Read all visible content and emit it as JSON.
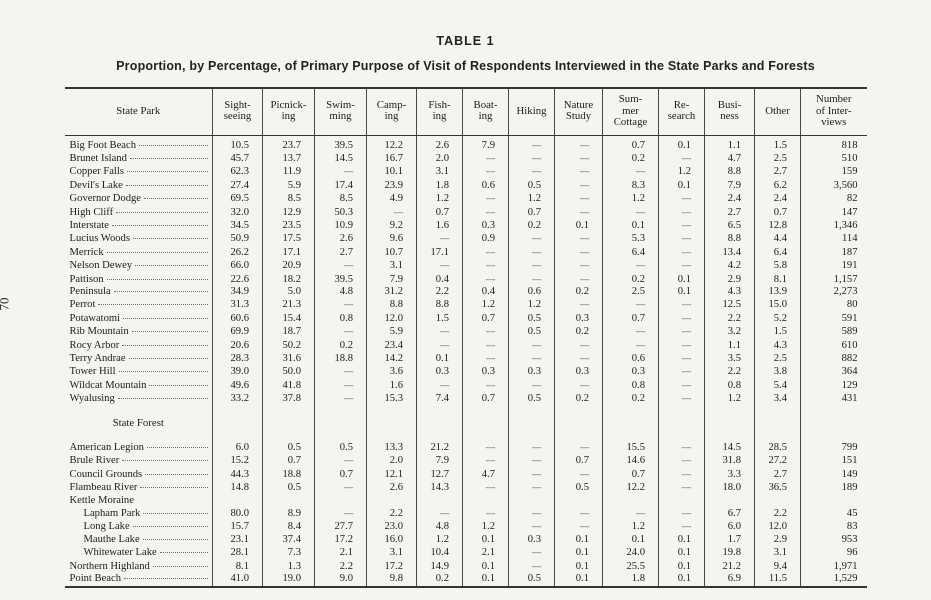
{
  "page": {
    "number": "70"
  },
  "title": "TABLE 1",
  "subtitle": "Proportion, by Percentage, of Primary Purpose of Visit of Respondents Interviewed in the State Parks and Forests",
  "table": {
    "empty_marker": "----",
    "columns": [
      {
        "id": "state-park",
        "label": "State Park"
      },
      {
        "id": "sightseeing",
        "label": "Sight-\nseeing"
      },
      {
        "id": "picnicking",
        "label": "Picnick-\ning"
      },
      {
        "id": "swimming",
        "label": "Swim-\nming"
      },
      {
        "id": "camping",
        "label": "Camp-\ning"
      },
      {
        "id": "fishing",
        "label": "Fish-\ning"
      },
      {
        "id": "boating",
        "label": "Boat-\ning"
      },
      {
        "id": "hiking",
        "label": "Hiking"
      },
      {
        "id": "nature-study",
        "label": "Nature\nStudy"
      },
      {
        "id": "summer-cottage",
        "label": "Sum-\nmer\nCottage"
      },
      {
        "id": "research",
        "label": "Re-\nsearch"
      },
      {
        "id": "business",
        "label": "Busi-\nness"
      },
      {
        "id": "other",
        "label": "Other"
      },
      {
        "id": "interviews",
        "label": "Number\nof Inter-\nviews"
      }
    ],
    "sections": [
      {
        "heading": "",
        "rows": [
          {
            "name": "Big Foot Beach",
            "values": [
              "10.5",
              "23.7",
              "39.5",
              "12.2",
              "2.6",
              "7.9",
              "",
              "",
              "0.7",
              "0.1",
              "1.1",
              "1.5",
              "818"
            ]
          },
          {
            "name": "Brunet Island",
            "values": [
              "45.7",
              "13.7",
              "14.5",
              "16.7",
              "2.0",
              "",
              "",
              "",
              "0.2",
              "",
              "4.7",
              "2.5",
              "510"
            ]
          },
          {
            "name": "Copper Falls",
            "values": [
              "62.3",
              "11.9",
              "",
              "10.1",
              "3.1",
              "",
              "",
              "",
              "",
              "1.2",
              "8.8",
              "2.7",
              "159"
            ]
          },
          {
            "name": "Devil's Lake",
            "values": [
              "27.4",
              "5.9",
              "17.4",
              "23.9",
              "1.8",
              "0.6",
              "0.5",
              "",
              "8.3",
              "0.1",
              "7.9",
              "6.2",
              "3,560"
            ]
          },
          {
            "name": "Governor Dodge",
            "values": [
              "69.5",
              "8.5",
              "8.5",
              "4.9",
              "1.2",
              "",
              "1.2",
              "",
              "1.2",
              "",
              "2.4",
              "2.4",
              "82"
            ]
          },
          {
            "name": "High Cliff",
            "values": [
              "32.0",
              "12.9",
              "50.3",
              "",
              "0.7",
              "",
              "0.7",
              "",
              "",
              "",
              "2.7",
              "0.7",
              "147"
            ]
          },
          {
            "name": "Interstate",
            "values": [
              "34.5",
              "23.5",
              "10.9",
              "9.2",
              "1.6",
              "0.3",
              "0.2",
              "0.1",
              "0.1",
              "",
              "6.5",
              "12.8",
              "1,346"
            ]
          },
          {
            "name": "Lucius Woods",
            "values": [
              "50.9",
              "17.5",
              "2.6",
              "9.6",
              "",
              "0.9",
              "",
              "",
              "5.3",
              "",
              "8.8",
              "4.4",
              "114"
            ]
          },
          {
            "name": "Merrick",
            "values": [
              "26.2",
              "17.1",
              "2.7",
              "10.7",
              "17.1",
              "",
              "",
              "",
              "6.4",
              "",
              "13.4",
              "6.4",
              "187"
            ]
          },
          {
            "name": "Nelson Dewey",
            "values": [
              "66.0",
              "20.9",
              "",
              "3.1",
              "",
              "",
              "",
              "",
              "",
              "",
              "4.2",
              "5.8",
              "191"
            ]
          },
          {
            "name": "Pattison",
            "values": [
              "22.6",
              "18.2",
              "39.5",
              "7.9",
              "0.4",
              "",
              "",
              "",
              "0.2",
              "0.1",
              "2.9",
              "8.1",
              "1,157"
            ]
          },
          {
            "name": "Peninsula",
            "values": [
              "34.9",
              "5.0",
              "4.8",
              "31.2",
              "2.2",
              "0.4",
              "0.6",
              "0.2",
              "2.5",
              "0.1",
              "4.3",
              "13.9",
              "2,273"
            ]
          },
          {
            "name": "Perrot",
            "values": [
              "31.3",
              "21.3",
              "",
              "8.8",
              "8.8",
              "1.2",
              "1.2",
              "",
              "",
              "",
              "12.5",
              "15.0",
              "80"
            ]
          },
          {
            "name": "Potawatomi",
            "values": [
              "60.6",
              "15.4",
              "0.8",
              "12.0",
              "1.5",
              "0.7",
              "0.5",
              "0.3",
              "0.7",
              "",
              "2.2",
              "5.2",
              "591"
            ]
          },
          {
            "name": "Rib Mountain",
            "values": [
              "69.9",
              "18.7",
              "",
              "5.9",
              "",
              "",
              "0.5",
              "0.2",
              "",
              "",
              "3.2",
              "1.5",
              "589"
            ]
          },
          {
            "name": "Rocy Arbor",
            "values": [
              "20.6",
              "50.2",
              "0.2",
              "23.4",
              "",
              "",
              "",
              "",
              "",
              "",
              "1.1",
              "4.3",
              "610"
            ]
          },
          {
            "name": "Terry Andrae",
            "values": [
              "28.3",
              "31.6",
              "18.8",
              "14.2",
              "0.1",
              "",
              "",
              "",
              "0.6",
              "",
              "3.5",
              "2.5",
              "882"
            ]
          },
          {
            "name": "Tower Hill",
            "values": [
              "39.0",
              "50.0",
              "",
              "3.6",
              "0.3",
              "0.3",
              "0.3",
              "0.3",
              "0.3",
              "",
              "2.2",
              "3.8",
              "364"
            ]
          },
          {
            "name": "Wildcat Mountain",
            "values": [
              "49.6",
              "41.8",
              "",
              "1.6",
              "",
              "",
              "",
              "",
              "0.8",
              "",
              "0.8",
              "5.4",
              "129"
            ]
          },
          {
            "name": "Wyalusing",
            "values": [
              "33.2",
              "37.8",
              "",
              "15.3",
              "7.4",
              "0.7",
              "0.5",
              "0.2",
              "0.2",
              "",
              "1.2",
              "3.4",
              "431"
            ]
          }
        ]
      },
      {
        "heading": "State Forest",
        "rows": [
          {
            "name": "American Legion",
            "values": [
              "6.0",
              "0.5",
              "0.5",
              "13.3",
              "21.2",
              "",
              "",
              "",
              "15.5",
              "",
              "14.5",
              "28.5",
              "799"
            ]
          },
          {
            "name": "Brule River",
            "values": [
              "15.2",
              "0.7",
              "",
              "2.0",
              "7.9",
              "",
              "",
              "0.7",
              "14.6",
              "",
              "31.8",
              "27.2",
              "151"
            ]
          },
          {
            "name": "Council Grounds",
            "values": [
              "44.3",
              "18.8",
              "0.7",
              "12.1",
              "12.7",
              "4.7",
              "",
              "",
              "0.7",
              "",
              "3.3",
              "2.7",
              "149"
            ]
          },
          {
            "name": "Flambeau River",
            "values": [
              "14.8",
              "0.5",
              "",
              "2.6",
              "14.3",
              "",
              "",
              "0.5",
              "12.2",
              "",
              "18.0",
              "36.5",
              "189"
            ]
          },
          {
            "name": "Kettle Moraine",
            "group": true,
            "values": [
              "",
              "",
              "",
              "",
              "",
              "",
              "",
              "",
              "",
              "",
              "",
              "",
              ""
            ]
          },
          {
            "name": "Lapham Park",
            "indent": true,
            "values": [
              "80.0",
              "8.9",
              "",
              "2.2",
              "",
              "",
              "",
              "",
              "",
              "",
              "6.7",
              "2.2",
              "45"
            ]
          },
          {
            "name": "Long Lake",
            "indent": true,
            "values": [
              "15.7",
              "8.4",
              "27.7",
              "23.0",
              "4.8",
              "1.2",
              "",
              "",
              "1.2",
              "",
              "6.0",
              "12.0",
              "83"
            ]
          },
          {
            "name": "Mauthe Lake",
            "indent": true,
            "values": [
              "23.1",
              "37.4",
              "17.2",
              "16.0",
              "1.2",
              "0.1",
              "0.3",
              "0.1",
              "0.1",
              "0.1",
              "1.7",
              "2.9",
              "953"
            ]
          },
          {
            "name": "Whitewater Lake",
            "indent": true,
            "values": [
              "28.1",
              "7.3",
              "2.1",
              "3.1",
              "10.4",
              "2.1",
              "",
              "0.1",
              "24.0",
              "0.1",
              "19.8",
              "3.1",
              "96"
            ]
          },
          {
            "name": "Northern Highland",
            "values": [
              "8.1",
              "1.3",
              "2.2",
              "17.2",
              "14.9",
              "0.1",
              "",
              "0.1",
              "25.5",
              "0.1",
              "21.2",
              "9.4",
              "1,971"
            ]
          },
          {
            "name": "Point Beach",
            "values": [
              "41.0",
              "19.0",
              "9.0",
              "9.8",
              "0.2",
              "0.1",
              "0.5",
              "0.1",
              "1.8",
              "0.1",
              "6.9",
              "11.5",
              "1,529"
            ]
          }
        ]
      }
    ]
  }
}
